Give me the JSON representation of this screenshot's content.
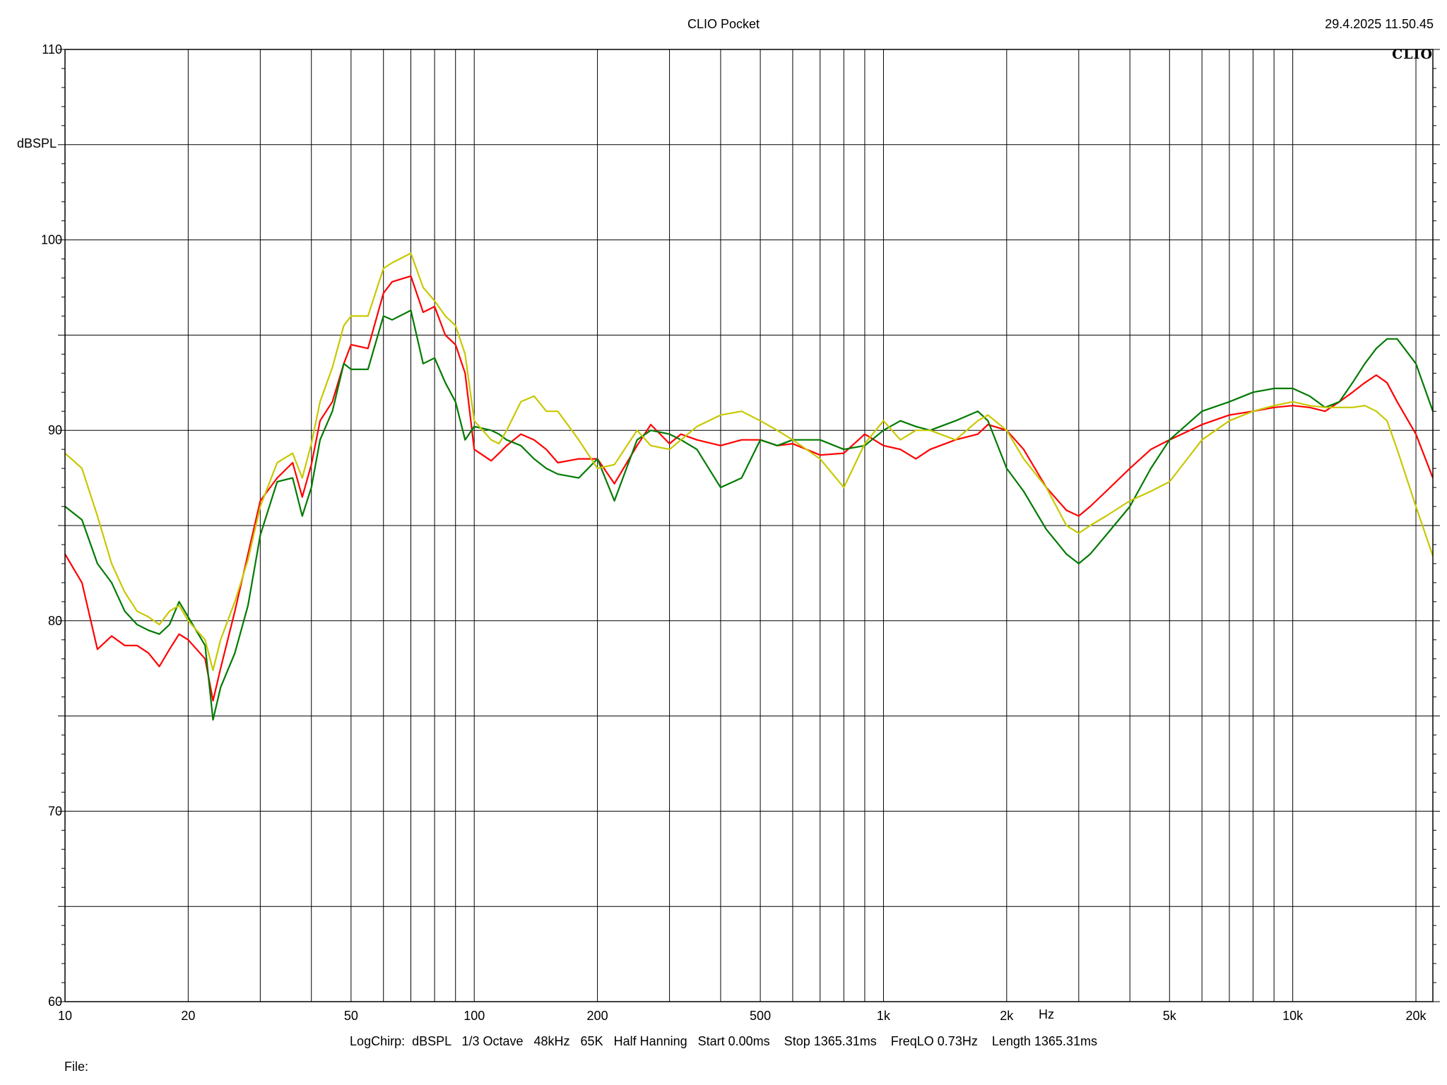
{
  "header": {
    "title": "CLIO Pocket",
    "timestamp": "29.4.2025 11.50.45",
    "logo": "CLIO"
  },
  "footer": {
    "settings": "LogChirp:  dBSPL   1/3 Octave   48kHz   65K   Half Hanning   Start 0.00ms    Stop 1365.31ms    FreqLO 0.73Hz    Length 1365.31ms",
    "file_label": "File:"
  },
  "chart_data": {
    "type": "line",
    "title": "CLIO Pocket",
    "xlabel": "Hz",
    "ylabel": "dBSPL",
    "xscale": "log",
    "xlim": [
      10,
      22000
    ],
    "ylim": [
      60,
      110
    ],
    "grid": true,
    "x_tick_labels": [
      {
        "value": 10,
        "label": "10"
      },
      {
        "value": 20,
        "label": "20"
      },
      {
        "value": 50,
        "label": "50"
      },
      {
        "value": 100,
        "label": "100"
      },
      {
        "value": 200,
        "label": "200"
      },
      {
        "value": 500,
        "label": "500"
      },
      {
        "value": 1000,
        "label": "1k"
      },
      {
        "value": 2000,
        "label": "2k"
      },
      {
        "value": 5000,
        "label": "5k"
      },
      {
        "value": 10000,
        "label": "10k"
      },
      {
        "value": 20000,
        "label": "20k"
      }
    ],
    "y_tick_labels": [
      {
        "value": 60,
        "label": "60"
      },
      {
        "value": 70,
        "label": "70"
      },
      {
        "value": 80,
        "label": "80"
      },
      {
        "value": 90,
        "label": "90"
      },
      {
        "value": 100,
        "label": "100"
      },
      {
        "value": 110,
        "label": "110"
      }
    ],
    "series": [
      {
        "color": "#ff0000",
        "x": [
          10,
          11,
          12,
          13,
          14,
          15,
          16,
          17,
          18,
          19,
          20,
          22,
          23,
          24,
          26,
          28,
          30,
          33,
          36,
          38,
          40,
          42,
          45,
          48,
          50,
          55,
          60,
          63,
          70,
          75,
          80,
          85,
          90,
          95,
          100,
          110,
          115,
          120,
          130,
          140,
          150,
          160,
          180,
          200,
          220,
          250,
          270,
          300,
          320,
          350,
          400,
          450,
          500,
          550,
          600,
          700,
          800,
          900,
          1000,
          1100,
          1200,
          1300,
          1500,
          1700,
          1800,
          2000,
          2200,
          2500,
          2800,
          3000,
          3200,
          3500,
          4000,
          4500,
          5000,
          6000,
          7000,
          8000,
          9000,
          10000,
          11000,
          12000,
          13000,
          14000,
          15000,
          16000,
          17000,
          18000,
          20000,
          22000
        ],
        "y": [
          83.5,
          82,
          78.5,
          79.2,
          78.7,
          78.7,
          78.3,
          77.6,
          78.5,
          79.3,
          79.0,
          78.0,
          75.8,
          77.5,
          80.5,
          83.5,
          86.3,
          87.5,
          88.3,
          86.5,
          88.2,
          90.5,
          91.5,
          93.5,
          94.5,
          94.3,
          97.2,
          97.8,
          98.1,
          96.2,
          96.5,
          95.0,
          94.5,
          93.0,
          89.0,
          88.4,
          88.8,
          89.2,
          89.8,
          89.5,
          89.0,
          88.3,
          88.5,
          88.5,
          87.2,
          89.2,
          90.3,
          89.3,
          89.8,
          89.5,
          89.2,
          89.5,
          89.5,
          89.2,
          89.3,
          88.7,
          88.8,
          89.8,
          89.2,
          89.0,
          88.5,
          89.0,
          89.5,
          89.8,
          90.3,
          90.0,
          89.0,
          87.0,
          85.8,
          85.5,
          86.0,
          86.8,
          88.0,
          89.0,
          89.5,
          90.3,
          90.8,
          91.0,
          91.2,
          91.3,
          91.2,
          91.0,
          91.5,
          92.0,
          92.5,
          92.9,
          92.5,
          91.5,
          89.8,
          87.5
        ]
      },
      {
        "color": "#007a00",
        "x": [
          10,
          11,
          12,
          13,
          14,
          15,
          16,
          17,
          18,
          19,
          20,
          22,
          23,
          24,
          26,
          28,
          30,
          33,
          36,
          38,
          40,
          42,
          45,
          48,
          50,
          55,
          60,
          63,
          70,
          75,
          80,
          85,
          90,
          95,
          100,
          110,
          115,
          120,
          130,
          140,
          150,
          160,
          180,
          200,
          220,
          250,
          270,
          300,
          320,
          350,
          400,
          450,
          500,
          550,
          600,
          700,
          800,
          900,
          1000,
          1100,
          1200,
          1300,
          1500,
          1700,
          1800,
          2000,
          2200,
          2500,
          2800,
          3000,
          3200,
          3500,
          4000,
          4500,
          5000,
          6000,
          7000,
          8000,
          9000,
          10000,
          11000,
          12000,
          13000,
          14000,
          15000,
          16000,
          17000,
          18000,
          20000,
          22000
        ],
        "y": [
          86.0,
          85.3,
          83.0,
          82.0,
          80.5,
          79.8,
          79.5,
          79.3,
          79.8,
          81.0,
          80.2,
          78.7,
          74.8,
          76.5,
          78.3,
          80.8,
          84.5,
          87.3,
          87.5,
          85.5,
          87.0,
          89.5,
          91.0,
          93.5,
          93.2,
          93.2,
          96.0,
          95.8,
          96.3,
          93.5,
          93.8,
          92.5,
          91.5,
          89.5,
          90.2,
          90.0,
          89.8,
          89.5,
          89.2,
          88.5,
          88.0,
          87.7,
          87.5,
          88.5,
          86.3,
          89.5,
          90.0,
          89.8,
          89.5,
          89.0,
          87.0,
          87.5,
          89.5,
          89.2,
          89.5,
          89.5,
          89.0,
          89.2,
          90.0,
          90.5,
          90.2,
          90.0,
          90.5,
          91.0,
          90.5,
          88.0,
          86.8,
          84.8,
          83.5,
          83.0,
          83.5,
          84.5,
          86.0,
          88.0,
          89.5,
          91.0,
          91.5,
          92.0,
          92.2,
          92.2,
          91.8,
          91.2,
          91.5,
          92.5,
          93.5,
          94.3,
          94.8,
          94.8,
          93.5,
          91.0
        ]
      },
      {
        "color": "#c8c800",
        "x": [
          10,
          11,
          12,
          13,
          14,
          15,
          16,
          17,
          18,
          19,
          20,
          22,
          23,
          24,
          26,
          28,
          30,
          33,
          36,
          38,
          40,
          42,
          45,
          48,
          50,
          55,
          60,
          63,
          70,
          75,
          80,
          85,
          90,
          95,
          100,
          110,
          115,
          120,
          130,
          140,
          150,
          160,
          180,
          200,
          220,
          250,
          270,
          300,
          320,
          350,
          400,
          450,
          500,
          550,
          600,
          700,
          800,
          900,
          1000,
          1100,
          1200,
          1300,
          1500,
          1700,
          1800,
          2000,
          2200,
          2500,
          2800,
          3000,
          3200,
          3500,
          4000,
          4500,
          5000,
          6000,
          7000,
          8000,
          9000,
          10000,
          11000,
          12000,
          13000,
          14000,
          15000,
          16000,
          17000,
          18000,
          20000,
          22000
        ],
        "y": [
          88.8,
          88.0,
          85.5,
          83.0,
          81.5,
          80.5,
          80.2,
          79.8,
          80.5,
          80.8,
          80.0,
          79.0,
          77.4,
          79.0,
          81.0,
          83.2,
          86.0,
          88.3,
          88.8,
          87.5,
          89.3,
          91.5,
          93.3,
          95.5,
          96.0,
          96.0,
          98.5,
          98.8,
          99.3,
          97.5,
          96.8,
          96.0,
          95.5,
          94.0,
          90.5,
          89.5,
          89.3,
          90.0,
          91.5,
          91.8,
          91.0,
          91.0,
          89.5,
          88.0,
          88.2,
          90.0,
          89.2,
          89.0,
          89.5,
          90.2,
          90.8,
          91.0,
          90.5,
          90.0,
          89.5,
          88.5,
          87.0,
          89.3,
          90.5,
          89.5,
          90.0,
          90.0,
          89.5,
          90.5,
          90.8,
          90.0,
          88.5,
          87.0,
          85.0,
          84.6,
          85.0,
          85.5,
          86.3,
          86.8,
          87.3,
          89.5,
          90.5,
          91.0,
          91.3,
          91.5,
          91.3,
          91.2,
          91.2,
          91.2,
          91.3,
          91.0,
          90.5,
          89.0,
          86.0,
          83.4
        ]
      }
    ]
  }
}
